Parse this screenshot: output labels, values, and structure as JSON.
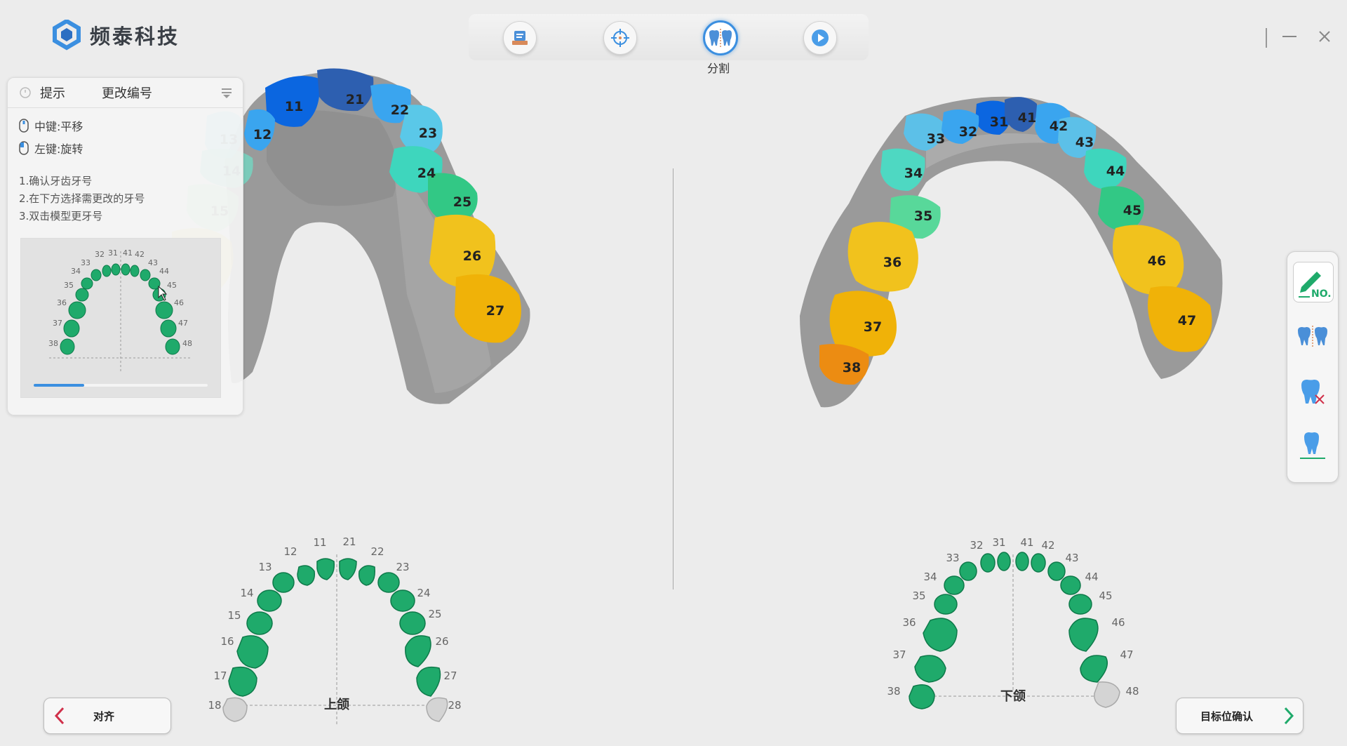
{
  "app": {
    "logo_text": "频泰科技"
  },
  "toolbar": {
    "active_label": "分割"
  },
  "hint_panel": {
    "tab_hint": "提示",
    "tab_renumber": "更改编号",
    "mouse_middle": "中键:平移",
    "mouse_left": "左键:旋转",
    "steps": [
      "1.确认牙齿牙号",
      "2.在下方选择需更改的牙号",
      "3.双击模型更牙号"
    ],
    "mini_chart_numbers": [
      "32",
      "31",
      "41",
      "42",
      "33",
      "43",
      "34",
      "44",
      "35",
      "45",
      "36",
      "46",
      "37",
      "47",
      "38",
      "48"
    ]
  },
  "upper_model_labels": [
    "11",
    "21",
    "22",
    "12",
    "13",
    "23",
    "14",
    "24",
    "15",
    "25",
    "26",
    "27"
  ],
  "lower_model_labels": [
    "31",
    "41",
    "33",
    "32",
    "42",
    "43",
    "34",
    "44",
    "35",
    "45",
    "36",
    "46",
    "37",
    "47",
    "38"
  ],
  "upper_chart": {
    "jaw_label": "上颌",
    "numbers": [
      "11",
      "21",
      "12",
      "22",
      "13",
      "23",
      "14",
      "24",
      "15",
      "25",
      "16",
      "26",
      "17",
      "27",
      "18",
      "28"
    ]
  },
  "lower_chart": {
    "jaw_label": "下颌",
    "numbers": [
      "32",
      "31",
      "41",
      "42",
      "33",
      "43",
      "34",
      "44",
      "35",
      "45",
      "36",
      "46",
      "37",
      "47",
      "38",
      "48"
    ]
  },
  "nav": {
    "back_label": "对齐",
    "next_label": "目标位确认"
  },
  "right_tools": {
    "renumber_text": "NO."
  },
  "colors": {
    "accent": "#3b8fe0",
    "tooth_green": "#1faa6b",
    "missing_gray": "#c9c9c9",
    "back_arrow": "#d0304a",
    "next_arrow": "#1faa6b"
  }
}
